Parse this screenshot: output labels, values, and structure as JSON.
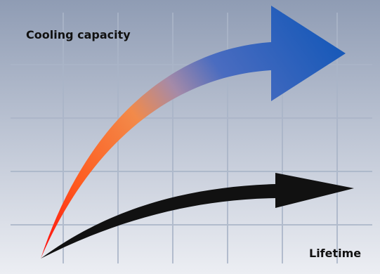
{
  "labels": {
    "cooling_capacity": "Cooling capacity",
    "lifetime": "Lifetime"
  },
  "colors": {
    "background_top": "#8f9cb4",
    "background_bottom": "#e8ebf1",
    "grid_line": "#aab5c8",
    "cooling_arrow_start": "#ff1a1a",
    "cooling_arrow_mid": "#f07a3c",
    "cooling_arrow_end": "#1f63c2",
    "lifetime_arrow": "#111111",
    "label_text": "#111111"
  },
  "icons": {
    "cooling_arrow": "curved-arrow-up-right-icon",
    "lifetime_arrow": "curved-arrow-right-icon"
  }
}
